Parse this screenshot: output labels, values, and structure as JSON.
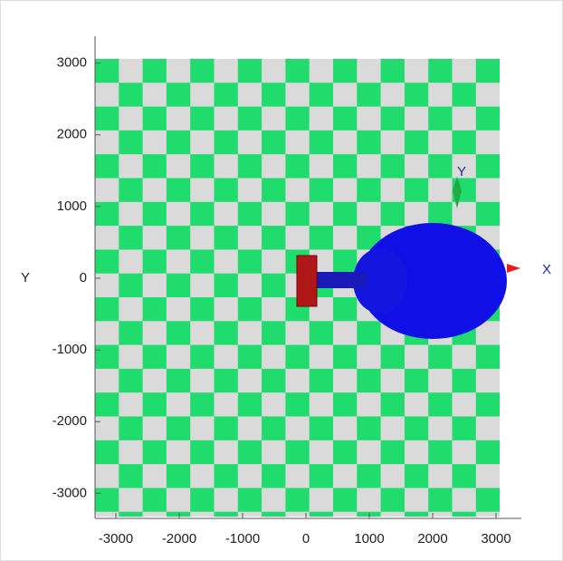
{
  "chart_data": {
    "type": "scene",
    "ylabel": "Y",
    "xlim": [
      -3400,
      3400
    ],
    "ylim": [
      -3400,
      3400
    ],
    "xticks": [
      -3000,
      -2000,
      -1000,
      0,
      1000,
      2000,
      3000
    ],
    "yticks": [
      -3000,
      -2000,
      -1000,
      0,
      1000,
      2000,
      3000
    ],
    "annotations": [
      "X",
      "Y"
    ]
  }
}
